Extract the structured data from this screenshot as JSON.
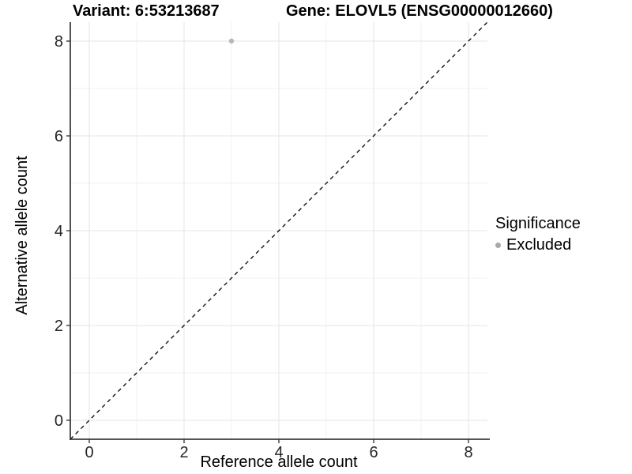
{
  "title": {
    "variant": "Variant: 6:53213687",
    "gene": "Gene: ELOVL5 (ENSG00000012660)"
  },
  "chart_data": {
    "type": "scatter",
    "title": "Variant: 6:53213687        Gene: ELOVL5 (ENSG00000012660)",
    "xlabel": "Reference allele count",
    "ylabel": "Alternative allele count",
    "xlim": [
      -0.4,
      8.4
    ],
    "ylim": [
      -0.4,
      8.4
    ],
    "xticks": [
      0,
      2,
      4,
      6,
      8
    ],
    "yticks": [
      0,
      2,
      4,
      6,
      8
    ],
    "xticks_minor": [
      1,
      3,
      5,
      7
    ],
    "yticks_minor": [
      1,
      3,
      5,
      7
    ],
    "grid": true,
    "identity_line": {
      "style": "dashed",
      "x1": -0.4,
      "y1": -0.4,
      "x2": 8.4,
      "y2": 8.4,
      "color": "#000000"
    },
    "series": [
      {
        "name": "Excluded",
        "color": "#b8b8b8",
        "points": [
          {
            "x": 3,
            "y": 8
          }
        ]
      }
    ],
    "legend": {
      "title": "Significance",
      "position": "right",
      "items": [
        {
          "label": "Excluded",
          "color": "#a9a9a9"
        }
      ]
    }
  },
  "colors": {
    "background": "#ffffff",
    "grid_major": "#e6e6e6",
    "grid_minor": "#f0f0f0",
    "axis_line": "#3c3c3c",
    "tick_mark": "#3c3c3c",
    "tick_label": "#262626",
    "axis_title": "#000000",
    "point": "#b8b8b8",
    "legend_dot": "#a9a9a9",
    "identity_line": "#000000"
  }
}
